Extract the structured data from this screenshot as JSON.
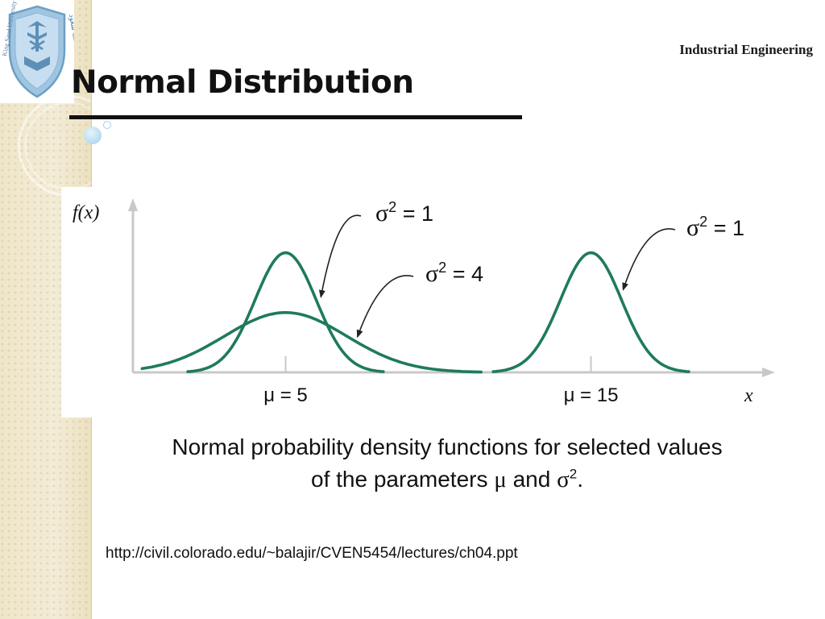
{
  "header": {
    "department": "Industrial Engineering",
    "logo_text_left": "King Saud University 1957",
    "logo_text_right": "جامعة الملك سعود"
  },
  "slide": {
    "title": "Normal Distribution"
  },
  "chart_data": {
    "type": "line",
    "ylabel": "f(x)",
    "xlabel": "x",
    "xlim": [
      0,
      20
    ],
    "ylim": [
      0,
      0.45
    ],
    "grid": false,
    "ticks": [
      {
        "x": 5,
        "label": "μ = 5"
      },
      {
        "x": 15,
        "label": "μ = 15"
      }
    ],
    "series": [
      {
        "mu": 5,
        "variance": 1
      },
      {
        "mu": 5,
        "variance": 4
      },
      {
        "mu": 15,
        "variance": 1
      }
    ],
    "annotations": [
      {
        "text_prefix": "σ",
        "sup": "2",
        "text_suffix": " = 1",
        "points_to": 0
      },
      {
        "text_prefix": "σ",
        "sup": "2",
        "text_suffix": " = 4",
        "points_to": 1
      },
      {
        "text_prefix": "σ",
        "sup": "2",
        "text_suffix": " = 1",
        "points_to": 2
      }
    ],
    "line_color": "#1f7a5c"
  },
  "caption": {
    "line1": "Normal probability density functions for selected values",
    "line2_prefix": "of the parameters ",
    "mu": "μ",
    "and": " and ",
    "sigma": "σ",
    "sup": "2",
    "period": "."
  },
  "source": {
    "url": "http://civil.colorado.edu/~balajir/CVEN5454/lectures/ch04.ppt"
  }
}
